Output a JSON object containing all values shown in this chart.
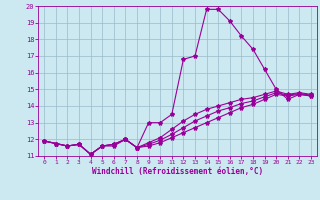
{
  "xlabel": "Windchill (Refroidissement éolien,°C)",
  "xlim": [
    -0.5,
    23.5
  ],
  "ylim": [
    11,
    20
  ],
  "yticks": [
    11,
    12,
    13,
    14,
    15,
    16,
    17,
    18,
    19,
    20
  ],
  "xticks": [
    0,
    1,
    2,
    3,
    4,
    5,
    6,
    7,
    8,
    9,
    10,
    11,
    12,
    13,
    14,
    15,
    16,
    17,
    18,
    19,
    20,
    21,
    22,
    23
  ],
  "bg_color": "#cce8f0",
  "line_color": "#990099",
  "grid_color": "#99bbcc",
  "line1_x": [
    0,
    1,
    2,
    3,
    4,
    5,
    6,
    7,
    8,
    9,
    10,
    11,
    12,
    13,
    14,
    15,
    16,
    17,
    18,
    19,
    20,
    21,
    22,
    23
  ],
  "line1_y": [
    11.9,
    11.75,
    11.6,
    11.7,
    11.1,
    11.6,
    11.6,
    12.0,
    11.5,
    13.0,
    13.0,
    13.5,
    16.8,
    17.0,
    19.8,
    19.8,
    19.1,
    18.2,
    17.4,
    16.2,
    15.0,
    14.4,
    14.7,
    14.6
  ],
  "line2_x": [
    0,
    1,
    2,
    3,
    4,
    5,
    6,
    7,
    8,
    9,
    10,
    11,
    12,
    13,
    14,
    15,
    16,
    17,
    18,
    19,
    20,
    21,
    22,
    23
  ],
  "line2_y": [
    11.9,
    11.75,
    11.6,
    11.7,
    11.1,
    11.6,
    11.7,
    12.0,
    11.5,
    11.8,
    12.1,
    12.6,
    13.1,
    13.5,
    13.8,
    14.0,
    14.2,
    14.4,
    14.5,
    14.7,
    14.9,
    14.7,
    14.8,
    14.7
  ],
  "line3_x": [
    0,
    1,
    2,
    3,
    4,
    5,
    6,
    7,
    8,
    9,
    10,
    11,
    12,
    13,
    14,
    15,
    16,
    17,
    18,
    19,
    20,
    21,
    22,
    23
  ],
  "line3_y": [
    11.9,
    11.75,
    11.6,
    11.7,
    11.1,
    11.6,
    11.7,
    12.0,
    11.5,
    11.6,
    11.8,
    12.1,
    12.4,
    12.7,
    13.0,
    13.3,
    13.6,
    13.9,
    14.1,
    14.4,
    14.7,
    14.6,
    14.7,
    14.6
  ],
  "line4_x": [
    0,
    1,
    2,
    3,
    4,
    5,
    6,
    7,
    8,
    9,
    10,
    11,
    12,
    13,
    14,
    15,
    16,
    17,
    18,
    19,
    20,
    21,
    22,
    23
  ],
  "line4_y": [
    11.9,
    11.75,
    11.6,
    11.7,
    11.1,
    11.6,
    11.7,
    12.0,
    11.5,
    11.7,
    11.95,
    12.3,
    12.7,
    13.1,
    13.4,
    13.7,
    13.9,
    14.15,
    14.3,
    14.55,
    14.8,
    14.65,
    14.75,
    14.65
  ],
  "marker": "*",
  "markersize": 3,
  "linewidth": 0.8
}
